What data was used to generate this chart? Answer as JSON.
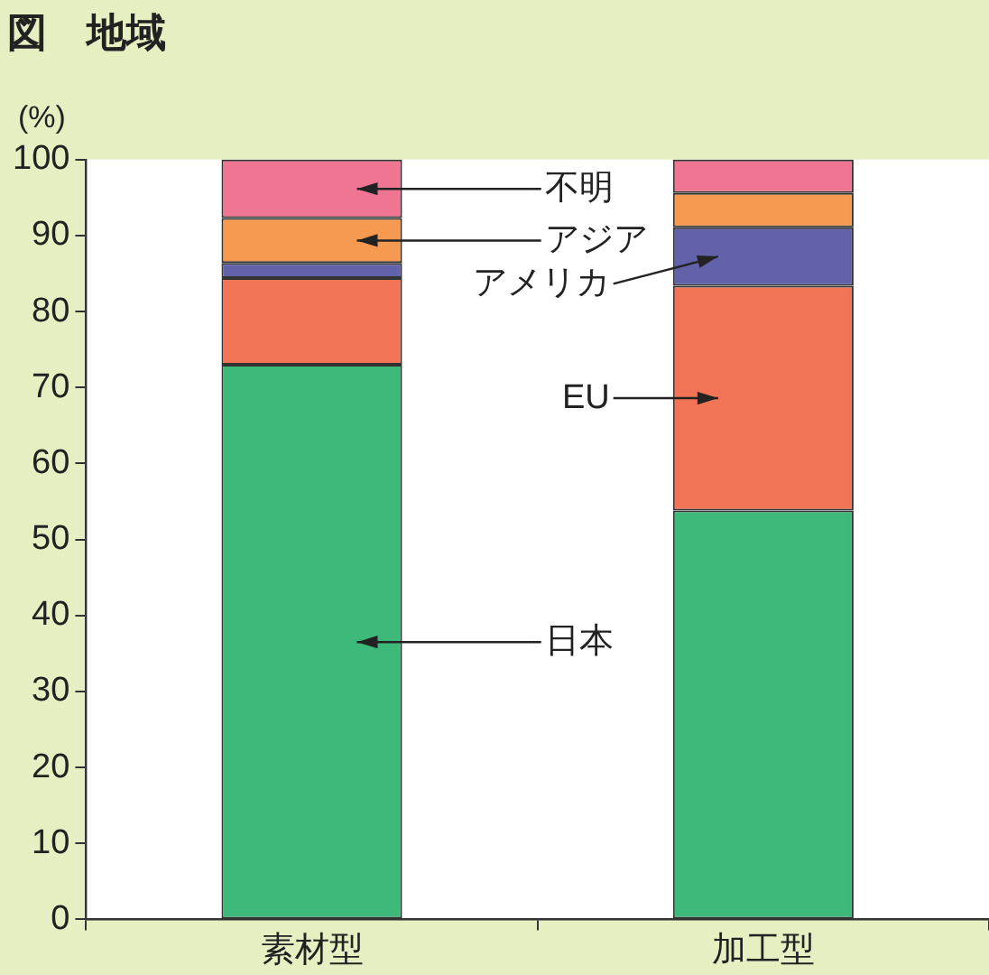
{
  "chart_data": {
    "type": "bar",
    "title": "図　地域",
    "ylabel": "(%)",
    "categories": [
      "素材型",
      "加工型"
    ],
    "stacked": true,
    "grid": false,
    "legend": false,
    "ylim": [
      0,
      100
    ],
    "yticks": [
      0,
      10,
      20,
      30,
      40,
      50,
      60,
      70,
      80,
      90,
      100
    ],
    "series": [
      {
        "name": "日本",
        "color": "#3dba7a",
        "values": [
          73.0,
          53.8
        ]
      },
      {
        "name": "EU",
        "color": "#f07455",
        "values": [
          11.4,
          29.6
        ]
      },
      {
        "name": "アメリカ",
        "color": "#6262aa",
        "values": [
          2.0,
          7.7
        ]
      },
      {
        "name": "アジア",
        "color": "#f59a50",
        "values": [
          5.9,
          4.5
        ]
      },
      {
        "name": "不明",
        "color": "#f07592",
        "values": [
          7.7,
          4.4
        ]
      }
    ]
  }
}
